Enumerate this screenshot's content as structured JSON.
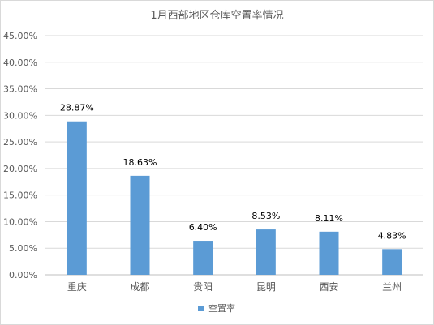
{
  "chart_data": {
    "type": "bar",
    "title": "1月西部地区仓库空置率情况",
    "categories": [
      "重庆",
      "成都",
      "贵阳",
      "昆明",
      "西安",
      "兰州"
    ],
    "series": [
      {
        "name": "空置率",
        "values": [
          28.87,
          18.63,
          6.4,
          8.53,
          8.11,
          4.83
        ]
      }
    ],
    "data_labels": [
      "28.87%",
      "18.63%",
      "6.40%",
      "8.53%",
      "8.11%",
      "4.83%"
    ],
    "y_ticks": [
      "0.00%",
      "5.00%",
      "10.00%",
      "15.00%",
      "20.00%",
      "25.00%",
      "30.00%",
      "35.00%",
      "40.00%",
      "45.00%"
    ],
    "ylim": [
      0,
      45
    ],
    "grid": true,
    "legend_position": "bottom",
    "bar_color": "#5b9bd5"
  }
}
